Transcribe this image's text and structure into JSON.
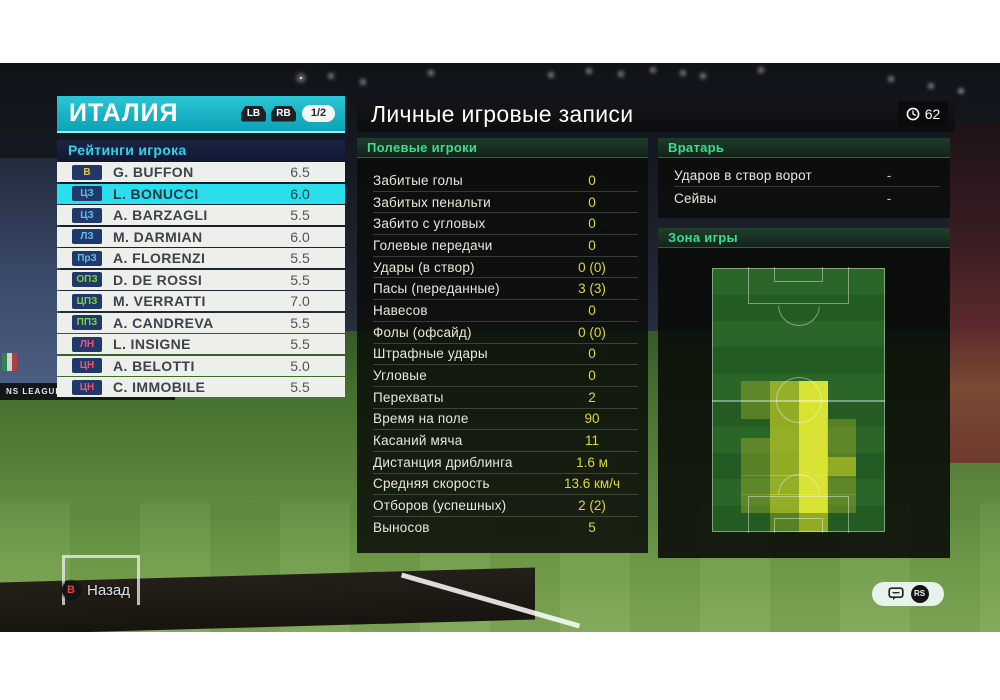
{
  "header": {
    "team": "ИТАЛИЯ",
    "prev_button": "LB",
    "next_button": "RB",
    "page": "1/2"
  },
  "left_panel": {
    "title": "Рейтинги игрока",
    "players": [
      {
        "pos": "В",
        "name": "G. BUFFON",
        "rating": "6.5",
        "group": "gk",
        "selected": false
      },
      {
        "pos": "ЦЗ",
        "name": "L. BONUCCI",
        "rating": "6.0",
        "group": "df",
        "selected": true
      },
      {
        "pos": "ЦЗ",
        "name": "A. BARZAGLI",
        "rating": "5.5",
        "group": "df",
        "selected": false
      },
      {
        "pos": "ЛЗ",
        "name": "M. DARMIAN",
        "rating": "6.0",
        "group": "df",
        "selected": false
      },
      {
        "pos": "ПрЗ",
        "name": "A. FLORENZI",
        "rating": "5.5",
        "group": "df",
        "selected": false
      },
      {
        "pos": "ОПЗ",
        "name": "D. DE ROSSI",
        "rating": "5.5",
        "group": "mf",
        "selected": false
      },
      {
        "pos": "ЦПЗ",
        "name": "M. VERRATTI",
        "rating": "7.0",
        "group": "mf",
        "selected": false
      },
      {
        "pos": "ППЗ",
        "name": "A. CANDREVA",
        "rating": "5.5",
        "group": "mf",
        "selected": false
      },
      {
        "pos": "ЛН",
        "name": "L. INSIGNE",
        "rating": "5.5",
        "group": "fw",
        "selected": false
      },
      {
        "pos": "ЦН",
        "name": "A. BELOTTI",
        "rating": "5.0",
        "group": "fw",
        "selected": false
      },
      {
        "pos": "ЦН",
        "name": "C. IMMOBILE",
        "rating": "5.5",
        "group": "fw",
        "selected": false
      }
    ]
  },
  "main": {
    "title": "Личные игровые записи",
    "time": "62",
    "time_icon": "clock-icon"
  },
  "field_stats": {
    "title": "Полевые игроки",
    "rows": [
      {
        "label": "Забитые голы",
        "value": "0"
      },
      {
        "label": "Забитых пенальти",
        "value": "0"
      },
      {
        "label": "Забито с угловых",
        "value": "0"
      },
      {
        "label": "Голевые передачи",
        "value": "0"
      },
      {
        "label": "Удары (в створ)",
        "value": "0 (0)"
      },
      {
        "label": "Пасы (переданные)",
        "value": "3 (3)"
      },
      {
        "label": "Навесов",
        "value": "0"
      },
      {
        "label": "Фолы (офсайд)",
        "value": "0 (0)"
      },
      {
        "label": "Штрафные удары",
        "value": "0"
      },
      {
        "label": "Угловые",
        "value": "0"
      },
      {
        "label": "Перехваты",
        "value": "2"
      },
      {
        "label": "Время на поле",
        "value": "90"
      },
      {
        "label": "Касаний мяча",
        "value": "11"
      },
      {
        "label": "Дистанция дриблинга",
        "value": "1.6 м"
      },
      {
        "label": "Средняя скорость",
        "value": "13.6 км/ч"
      },
      {
        "label": "Отборов (успешных)",
        "value": "2 (2)"
      },
      {
        "label": "Выносов",
        "value": "5"
      }
    ]
  },
  "gk_stats": {
    "title": "Вратарь",
    "rows": [
      {
        "label": "Ударов в створ ворот",
        "value": "-"
      },
      {
        "label": "Сейвы",
        "value": "-"
      }
    ]
  },
  "zone": {
    "title": "Зона игры",
    "grid": {
      "cols": 6,
      "rows": 14
    },
    "heatmap_cells": [
      {
        "c": 1,
        "r": 6,
        "l": 1
      },
      {
        "c": 2,
        "r": 6,
        "l": 2
      },
      {
        "c": 3,
        "r": 6,
        "l": 3
      },
      {
        "c": 1,
        "r": 7,
        "l": 1
      },
      {
        "c": 2,
        "r": 7,
        "l": 2
      },
      {
        "c": 3,
        "r": 7,
        "l": 3
      },
      {
        "c": 2,
        "r": 8,
        "l": 2
      },
      {
        "c": 3,
        "r": 8,
        "l": 3
      },
      {
        "c": 4,
        "r": 8,
        "l": 1
      },
      {
        "c": 1,
        "r": 9,
        "l": 1
      },
      {
        "c": 2,
        "r": 9,
        "l": 2
      },
      {
        "c": 3,
        "r": 9,
        "l": 3
      },
      {
        "c": 4,
        "r": 9,
        "l": 1
      },
      {
        "c": 1,
        "r": 10,
        "l": 1
      },
      {
        "c": 2,
        "r": 10,
        "l": 2
      },
      {
        "c": 3,
        "r": 10,
        "l": 3
      },
      {
        "c": 4,
        "r": 10,
        "l": 2
      },
      {
        "c": 1,
        "r": 11,
        "l": 1
      },
      {
        "c": 2,
        "r": 11,
        "l": 2
      },
      {
        "c": 3,
        "r": 11,
        "l": 3
      },
      {
        "c": 4,
        "r": 11,
        "l": 1
      },
      {
        "c": 1,
        "r": 12,
        "l": 1
      },
      {
        "c": 2,
        "r": 12,
        "l": 2
      },
      {
        "c": 3,
        "r": 12,
        "l": 3
      },
      {
        "c": 4,
        "r": 12,
        "l": 1
      },
      {
        "c": 2,
        "r": 13,
        "l": 1
      },
      {
        "c": 3,
        "r": 13,
        "l": 2
      }
    ]
  },
  "footer": {
    "back_button": "B",
    "back_label": "Назад",
    "chat_icon": "chat-bubble-icon",
    "stick_button": "RS"
  },
  "background": {
    "board_text": "NS LEAGUE"
  },
  "colors": {
    "accent_teal": "#17b0c2",
    "selected_row": "#2bdeee",
    "value_yellow": "#ddd63c",
    "section_green": "#37df8e",
    "badge": {
      "gk": "#e6cb3e",
      "df": "#62bbe8",
      "mf": "#7ad23f",
      "fw": "#f05570"
    },
    "heat_levels": {
      "1": "rgba(163,182,42,0.42)",
      "2": "rgba(202,213,38,0.66)",
      "3": "rgba(228,234,54,0.95)"
    }
  }
}
